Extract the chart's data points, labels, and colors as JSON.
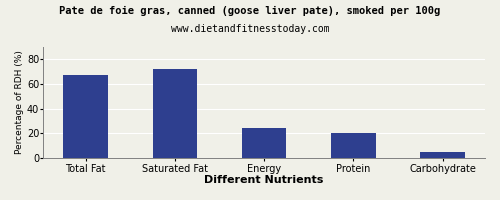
{
  "title": "Pate de foie gras, canned (goose liver pate), smoked per 100g",
  "subtitle": "www.dietandfitnesstoday.com",
  "categories": [
    "Total Fat",
    "Saturated Fat",
    "Energy",
    "Protein",
    "Carbohydrate"
  ],
  "values": [
    67,
    72,
    24,
    20,
    5
  ],
  "bar_color": "#2e3f8f",
  "xlabel": "Different Nutrients",
  "ylabel": "Percentage of RDH (%)",
  "ylim": [
    0,
    90
  ],
  "yticks": [
    0,
    20,
    40,
    60,
    80
  ],
  "background_color": "#f0f0e8",
  "title_fontsize": 7.5,
  "subtitle_fontsize": 7,
  "xlabel_fontsize": 8,
  "ylabel_fontsize": 6.5,
  "tick_fontsize": 7
}
